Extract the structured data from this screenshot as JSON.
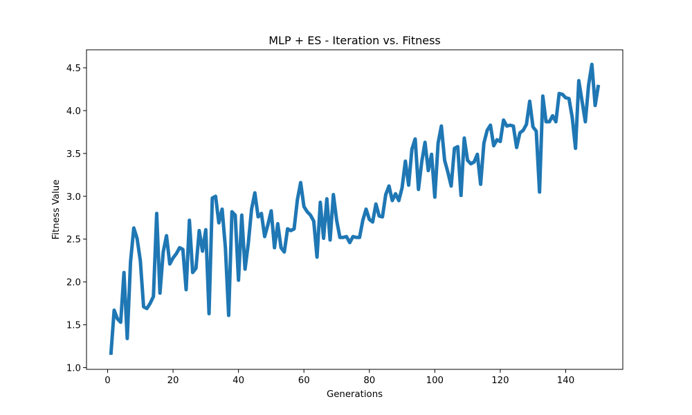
{
  "chart_data": {
    "type": "line",
    "title": "MLP + ES - Iteration vs. Fitness",
    "xlabel": "Generations",
    "ylabel": "Fitness Value",
    "xlim": [
      -6.45,
      157.45
    ],
    "ylim": [
      0.98,
      4.71
    ],
    "xticks": [
      0,
      20,
      40,
      60,
      80,
      100,
      120,
      140
    ],
    "yticks": [
      1.0,
      1.5,
      2.0,
      2.5,
      3.0,
      3.5,
      4.0,
      4.5
    ],
    "xtick_labels": [
      "0",
      "20",
      "40",
      "60",
      "80",
      "100",
      "120",
      "140"
    ],
    "ytick_labels": [
      "1.0",
      "1.5",
      "2.0",
      "2.5",
      "3.0",
      "3.5",
      "4.0",
      "4.5"
    ],
    "grid": false,
    "series": [
      {
        "color": "#1f77b4",
        "x": [
          1,
          2,
          3,
          4,
          5,
          6,
          7,
          8,
          9,
          10,
          11,
          12,
          13,
          14,
          15,
          16,
          17,
          18,
          19,
          20,
          21,
          22,
          23,
          24,
          25,
          26,
          27,
          28,
          29,
          30,
          31,
          32,
          33,
          34,
          35,
          36,
          37,
          38,
          39,
          40,
          41,
          42,
          43,
          44,
          45,
          46,
          47,
          48,
          49,
          50,
          51,
          52,
          53,
          54,
          55,
          56,
          57,
          58,
          59,
          60,
          61,
          62,
          63,
          64,
          65,
          66,
          67,
          68,
          69,
          70,
          71,
          72,
          73,
          74,
          75,
          76,
          77,
          78,
          79,
          80,
          81,
          82,
          83,
          84,
          85,
          86,
          87,
          88,
          89,
          90,
          91,
          92,
          93,
          94,
          95,
          96,
          97,
          98,
          99,
          100,
          101,
          102,
          103,
          104,
          105,
          106,
          107,
          108,
          109,
          110,
          111,
          112,
          113,
          114,
          115,
          116,
          117,
          118,
          119,
          120,
          121,
          122,
          123,
          124,
          125,
          126,
          127,
          128,
          129,
          130,
          131,
          132,
          133,
          134,
          135,
          136,
          137,
          138,
          139,
          140,
          141,
          142,
          143,
          144,
          145,
          146,
          147,
          148,
          149,
          150
        ],
        "y": [
          1.15,
          1.67,
          1.57,
          1.53,
          2.11,
          1.34,
          2.23,
          2.63,
          2.51,
          2.25,
          1.71,
          1.69,
          1.75,
          1.83,
          2.8,
          1.87,
          2.35,
          2.54,
          2.21,
          2.28,
          2.33,
          2.4,
          2.38,
          1.91,
          2.72,
          2.11,
          2.16,
          2.6,
          2.36,
          2.61,
          1.63,
          2.98,
          3.0,
          2.69,
          2.85,
          2.4,
          1.61,
          2.82,
          2.78,
          2.02,
          2.78,
          2.15,
          2.45,
          2.85,
          3.04,
          2.76,
          2.8,
          2.53,
          2.67,
          2.83,
          2.4,
          2.68,
          2.4,
          2.35,
          2.62,
          2.6,
          2.62,
          2.96,
          3.16,
          2.88,
          2.82,
          2.78,
          2.71,
          2.29,
          2.93,
          2.51,
          2.97,
          2.49,
          3.02,
          2.72,
          2.52,
          2.52,
          2.53,
          2.46,
          2.53,
          2.52,
          2.52,
          2.72,
          2.85,
          2.73,
          2.7,
          2.91,
          2.77,
          2.76,
          3.02,
          3.12,
          2.95,
          3.03,
          2.95,
          3.1,
          3.41,
          3.13,
          3.55,
          3.67,
          3.08,
          3.4,
          3.63,
          3.3,
          3.49,
          2.99,
          3.62,
          3.82,
          3.42,
          3.28,
          3.12,
          3.56,
          3.58,
          3.01,
          3.68,
          3.42,
          3.38,
          3.4,
          3.49,
          3.14,
          3.62,
          3.77,
          3.83,
          3.59,
          3.66,
          3.64,
          3.89,
          3.82,
          3.83,
          3.82,
          3.57,
          3.74,
          3.77,
          3.84,
          4.11,
          3.81,
          3.76,
          3.05,
          4.17,
          3.87,
          3.87,
          3.94,
          3.87,
          4.2,
          4.19,
          4.15,
          4.14,
          3.92,
          3.56,
          4.35,
          4.11,
          3.87,
          4.3,
          4.54,
          4.06,
          4.3
        ]
      }
    ]
  }
}
